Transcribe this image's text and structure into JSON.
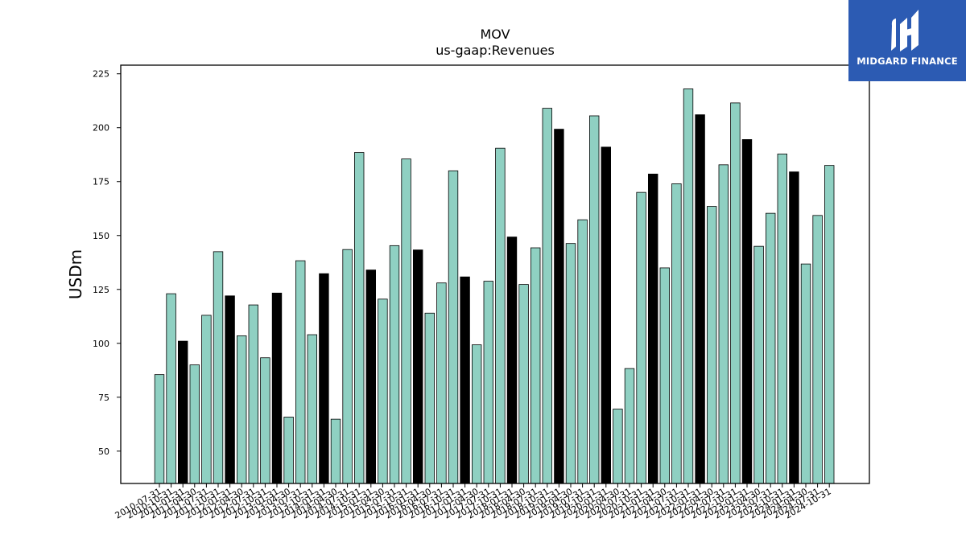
{
  "logo": {
    "text": "MIDGARD FINANCE"
  },
  "chart_data": {
    "type": "bar",
    "title": "MOV",
    "subtitle": "us-gaap:Revenues",
    "xlabel": "",
    "ylabel": "USDm",
    "ylim": [
      35,
      229
    ],
    "yticks": [
      50,
      75,
      100,
      125,
      150,
      175,
      200,
      225
    ],
    "grid": false,
    "colors": {
      "quarter": "#8fd0c2",
      "annual": "#000000",
      "edge": "#000000"
    },
    "categories": [
      "2010-07-31",
      "2010-10-31",
      "2011-01-31",
      "2011-04-30",
      "2011-07-31",
      "2011-10-31",
      "2012-01-31",
      "2012-04-30",
      "2012-07-31",
      "2012-10-31",
      "2013-01-31",
      "2013-04-30",
      "2013-07-31",
      "2013-10-31",
      "2014-01-31",
      "2014-04-30",
      "2014-07-31",
      "2014-10-31",
      "2015-01-31",
      "2015-04-30",
      "2015-07-31",
      "2015-10-31",
      "2016-01-31",
      "2016-04-30",
      "2016-07-31",
      "2016-10-31",
      "2017-01-31",
      "2017-04-30",
      "2017-07-31",
      "2017-10-31",
      "2018-01-31",
      "2018-04-30",
      "2018-07-31",
      "2018-10-31",
      "2019-01-31",
      "2019-04-30",
      "2019-07-31",
      "2019-10-31",
      "2020-01-31",
      "2020-04-30",
      "2020-07-31",
      "2020-10-31",
      "2021-01-31",
      "2021-04-30",
      "2021-07-31",
      "2021-10-31",
      "2022-01-31",
      "2022-04-30",
      "2022-07-31",
      "2022-10-31",
      "2023-01-31",
      "2023-04-30",
      "2023-07-31",
      "2023-10-31",
      "2024-01-31",
      "2024-04-30",
      "2024-07-31",
      "2024-10-31"
    ],
    "values": [
      85.5,
      123,
      101,
      90,
      113,
      142.5,
      122,
      103.5,
      117.8,
      93.3,
      123.3,
      65.8,
      138.3,
      104,
      132.3,
      64.8,
      143.5,
      188.5,
      134,
      120.5,
      145.3,
      185.5,
      143.3,
      114,
      128,
      180,
      130.8,
      99.3,
      128.8,
      190.5,
      149.3,
      127.3,
      144.3,
      209,
      199.3,
      146.3,
      157.3,
      205.5,
      191,
      69.5,
      88.3,
      170,
      178.5,
      135,
      174,
      218,
      206,
      163.5,
      182.8,
      211.5,
      194.5,
      145,
      160.3,
      187.8,
      179.5,
      136.8,
      159.3,
      182.5
    ],
    "annual": [
      false,
      false,
      true,
      false,
      false,
      false,
      true,
      false,
      false,
      false,
      true,
      false,
      false,
      false,
      true,
      false,
      false,
      false,
      true,
      false,
      false,
      false,
      true,
      false,
      false,
      false,
      true,
      false,
      false,
      false,
      true,
      false,
      false,
      false,
      true,
      false,
      false,
      false,
      true,
      false,
      false,
      false,
      true,
      false,
      false,
      false,
      true,
      false,
      false,
      false,
      true,
      false,
      false,
      false,
      true,
      false,
      false,
      false
    ]
  }
}
